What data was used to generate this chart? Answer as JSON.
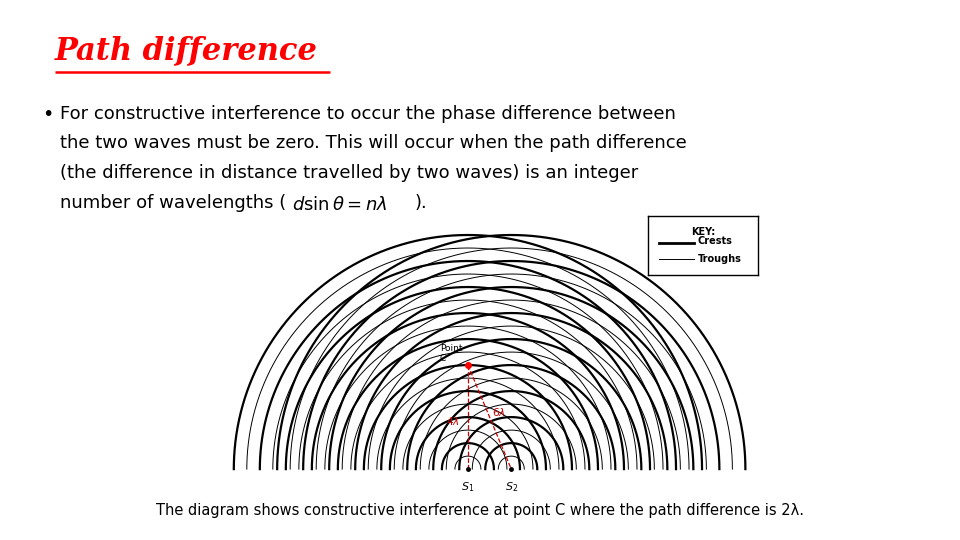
{
  "title": "Path difference",
  "title_color": "#FF0000",
  "title_fontsize": 22,
  "bullet_lines": [
    "For constructive interference to occur the phase difference between",
    "the two waves must be zero. This will occur when the path difference",
    "(the difference in distance travelled by two waves) is an integer",
    "number of wavelengths ("
  ],
  "bullet_formula": "d\\sin\\theta = n\\lambda",
  "bullet_end": ").",
  "bullet_fontsize": 13,
  "caption": "The diagram shows constructive interference at point C where the path difference is 2λ.",
  "caption_fontsize": 10.5,
  "num_crests": 9,
  "crest_lw": 1.6,
  "trough_lw": 0.7,
  "lambda_label_color": "#CC0000",
  "background_color": "#FFFFFF",
  "s1_label": "$S_1$",
  "s2_label": "$S_2$",
  "key_title": "KEY:",
  "key_crests": "Crests",
  "key_troughs": "Troughs"
}
